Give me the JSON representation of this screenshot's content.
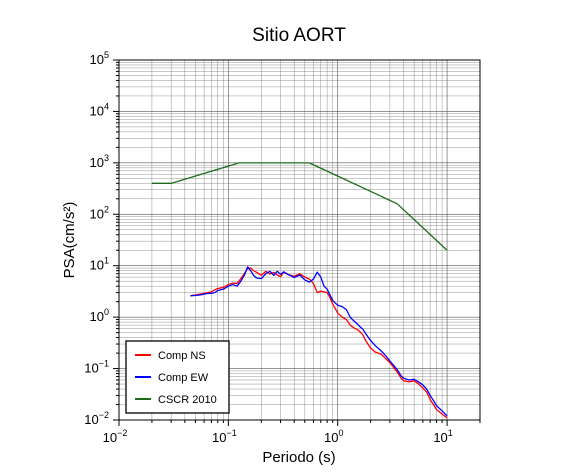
{
  "chart_data": {
    "type": "line",
    "title": "Sitio AORT",
    "xlabel": "Periodo (s)",
    "ylabel": "PSA(cm/s²)",
    "x_scale": "log",
    "y_scale": "log",
    "xlim": [
      0.01,
      20
    ],
    "ylim": [
      0.01,
      100000
    ],
    "x_ticks": [
      {
        "value": 0.01,
        "base": "10",
        "exp": "−2"
      },
      {
        "value": 0.1,
        "base": "10",
        "exp": "−1"
      },
      {
        "value": 1,
        "base": "10",
        "exp": "0"
      },
      {
        "value": 10,
        "base": "10",
        "exp": "1"
      }
    ],
    "y_ticks": [
      {
        "value": 0.01,
        "base": "10",
        "exp": "−2"
      },
      {
        "value": 0.1,
        "base": "10",
        "exp": "−1"
      },
      {
        "value": 1,
        "base": "10",
        "exp": "0"
      },
      {
        "value": 10,
        "base": "10",
        "exp": "1"
      },
      {
        "value": 100,
        "base": "10",
        "exp": "2"
      },
      {
        "value": 1000,
        "base": "10",
        "exp": "3"
      },
      {
        "value": 10000,
        "base": "10",
        "exp": "4"
      },
      {
        "value": 100000,
        "base": "10",
        "exp": "5"
      }
    ],
    "grid": true,
    "legend_position": "bottom-left",
    "series": [
      {
        "name": "Comp NS",
        "color": "#ff0000",
        "points": [
          [
            0.045,
            2.6
          ],
          [
            0.05,
            2.7
          ],
          [
            0.055,
            2.8
          ],
          [
            0.06,
            2.9
          ],
          [
            0.065,
            3.0
          ],
          [
            0.07,
            3.1
          ],
          [
            0.075,
            3.4
          ],
          [
            0.08,
            3.6
          ],
          [
            0.09,
            3.8
          ],
          [
            0.1,
            4.3
          ],
          [
            0.11,
            4.6
          ],
          [
            0.12,
            4.5
          ],
          [
            0.13,
            5.6
          ],
          [
            0.14,
            7.0
          ],
          [
            0.15,
            8.9
          ],
          [
            0.16,
            9.0
          ],
          [
            0.17,
            8.0
          ],
          [
            0.18,
            7.5
          ],
          [
            0.2,
            6.5
          ],
          [
            0.22,
            7.8
          ],
          [
            0.24,
            6.9
          ],
          [
            0.26,
            7.4
          ],
          [
            0.28,
            6.6
          ],
          [
            0.3,
            6.1
          ],
          [
            0.32,
            7.5
          ],
          [
            0.35,
            6.8
          ],
          [
            0.4,
            6.2
          ],
          [
            0.45,
            7.0
          ],
          [
            0.5,
            6.0
          ],
          [
            0.55,
            5.5
          ],
          [
            0.6,
            4.5
          ],
          [
            0.65,
            3.0
          ],
          [
            0.7,
            3.2
          ],
          [
            0.75,
            3.1
          ],
          [
            0.8,
            3.0
          ],
          [
            0.85,
            2.4
          ],
          [
            0.9,
            1.8
          ],
          [
            1.0,
            1.2
          ],
          [
            1.1,
            1.0
          ],
          [
            1.2,
            0.9
          ],
          [
            1.3,
            0.7
          ],
          [
            1.4,
            0.62
          ],
          [
            1.5,
            0.58
          ],
          [
            1.6,
            0.52
          ],
          [
            1.7,
            0.45
          ],
          [
            1.8,
            0.35
          ],
          [
            2.0,
            0.25
          ],
          [
            2.2,
            0.21
          ],
          [
            2.5,
            0.19
          ],
          [
            2.8,
            0.15
          ],
          [
            3.0,
            0.13
          ],
          [
            3.2,
            0.11
          ],
          [
            3.5,
            0.085
          ],
          [
            3.8,
            0.065
          ],
          [
            4.0,
            0.058
          ],
          [
            4.5,
            0.055
          ],
          [
            5.0,
            0.058
          ],
          [
            5.5,
            0.05
          ],
          [
            6.0,
            0.042
          ],
          [
            6.5,
            0.035
          ],
          [
            7.0,
            0.025
          ],
          [
            7.5,
            0.02
          ],
          [
            8.0,
            0.016
          ],
          [
            9.0,
            0.013
          ],
          [
            10.0,
            0.011
          ]
        ]
      },
      {
        "name": "Comp EW",
        "color": "#0000ff",
        "points": [
          [
            0.045,
            2.6
          ],
          [
            0.05,
            2.65
          ],
          [
            0.055,
            2.7
          ],
          [
            0.06,
            2.8
          ],
          [
            0.065,
            2.9
          ],
          [
            0.07,
            2.9
          ],
          [
            0.075,
            3.0
          ],
          [
            0.08,
            3.3
          ],
          [
            0.09,
            3.5
          ],
          [
            0.1,
            4.0
          ],
          [
            0.11,
            4.3
          ],
          [
            0.12,
            4.0
          ],
          [
            0.13,
            5.0
          ],
          [
            0.14,
            6.5
          ],
          [
            0.15,
            9.5
          ],
          [
            0.16,
            8.0
          ],
          [
            0.17,
            6.5
          ],
          [
            0.18,
            5.8
          ],
          [
            0.2,
            5.6
          ],
          [
            0.22,
            7.0
          ],
          [
            0.24,
            7.8
          ],
          [
            0.26,
            6.5
          ],
          [
            0.28,
            7.8
          ],
          [
            0.3,
            6.8
          ],
          [
            0.32,
            7.6
          ],
          [
            0.35,
            6.8
          ],
          [
            0.4,
            5.9
          ],
          [
            0.45,
            6.6
          ],
          [
            0.5,
            5.3
          ],
          [
            0.55,
            4.8
          ],
          [
            0.6,
            5.5
          ],
          [
            0.65,
            7.5
          ],
          [
            0.7,
            6.0
          ],
          [
            0.75,
            4.0
          ],
          [
            0.8,
            3.5
          ],
          [
            0.85,
            2.7
          ],
          [
            0.9,
            2.1
          ],
          [
            1.0,
            1.7
          ],
          [
            1.1,
            1.6
          ],
          [
            1.2,
            1.4
          ],
          [
            1.3,
            1.0
          ],
          [
            1.4,
            0.85
          ],
          [
            1.5,
            0.75
          ],
          [
            1.6,
            0.65
          ],
          [
            1.7,
            0.58
          ],
          [
            1.8,
            0.48
          ],
          [
            2.0,
            0.35
          ],
          [
            2.2,
            0.28
          ],
          [
            2.5,
            0.22
          ],
          [
            2.8,
            0.17
          ],
          [
            3.0,
            0.14
          ],
          [
            3.2,
            0.12
          ],
          [
            3.5,
            0.095
          ],
          [
            3.8,
            0.072
          ],
          [
            4.0,
            0.065
          ],
          [
            4.5,
            0.06
          ],
          [
            5.0,
            0.062
          ],
          [
            5.5,
            0.055
          ],
          [
            6.0,
            0.048
          ],
          [
            6.5,
            0.04
          ],
          [
            7.0,
            0.03
          ],
          [
            7.5,
            0.024
          ],
          [
            8.0,
            0.019
          ],
          [
            9.0,
            0.015
          ],
          [
            10.0,
            0.012
          ]
        ]
      },
      {
        "name": "CSCR 2010",
        "color": "#1a6b1a",
        "points": [
          [
            0.02,
            400
          ],
          [
            0.03,
            400
          ],
          [
            0.125,
            1000
          ],
          [
            0.55,
            1000
          ],
          [
            3.5,
            160
          ],
          [
            10,
            20
          ]
        ]
      }
    ]
  }
}
